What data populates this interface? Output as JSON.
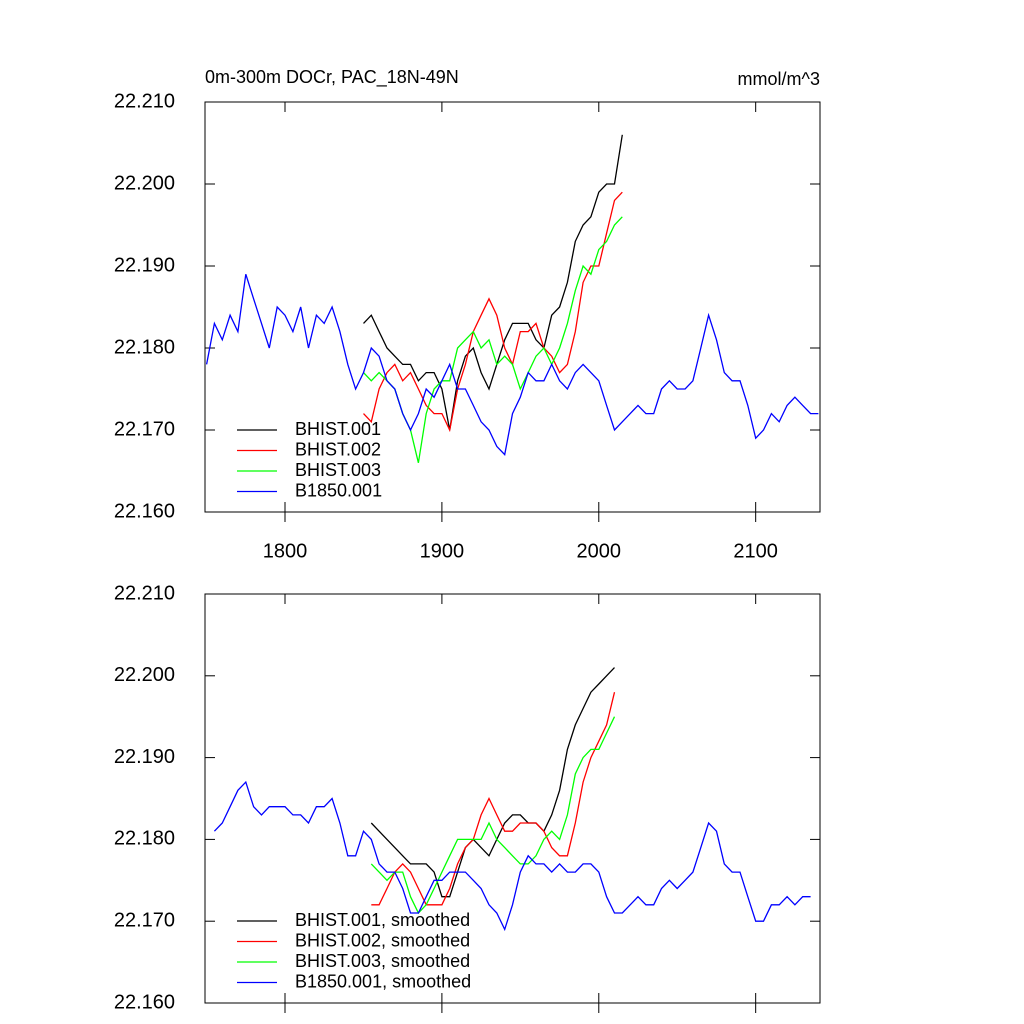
{
  "chart_data": [
    {
      "type": "line",
      "title": "0m-300m DOCr, PAC_18N-49N",
      "units": "mmol/m^3",
      "xlim": [
        1749,
        2141
      ],
      "xticks": [
        1800,
        1900,
        2000,
        2100
      ],
      "show_xtick_labels": true,
      "ylim": [
        22.16,
        22.21
      ],
      "yticks": [
        {
          "value": 22.16,
          "label": "22.160"
        },
        {
          "value": 22.17,
          "label": "22.170"
        },
        {
          "value": 22.18,
          "label": "22.180"
        },
        {
          "value": 22.19,
          "label": "22.190"
        },
        {
          "value": 22.2,
          "label": "22.200"
        },
        {
          "value": 22.21,
          "label": "22.210"
        }
      ],
      "legend": "lower left",
      "series": [
        {
          "name": "BHIST.001",
          "color": "#000000",
          "x": [
            1850,
            1855,
            1860,
            1865,
            1870,
            1875,
            1880,
            1885,
            1890,
            1895,
            1900,
            1905,
            1910,
            1915,
            1920,
            1925,
            1930,
            1935,
            1940,
            1945,
            1950,
            1955,
            1960,
            1965,
            1970,
            1975,
            1980,
            1985,
            1990,
            1995,
            2000,
            2005,
            2010,
            2015
          ],
          "values": [
            22.183,
            22.184,
            22.182,
            22.18,
            22.179,
            22.178,
            22.178,
            22.176,
            22.177,
            22.177,
            22.175,
            22.17,
            22.176,
            22.179,
            22.18,
            22.177,
            22.175,
            22.178,
            22.181,
            22.183,
            22.183,
            22.183,
            22.181,
            22.18,
            22.184,
            22.185,
            22.188,
            22.193,
            22.195,
            22.196,
            22.199,
            22.2,
            22.2,
            22.206
          ]
        },
        {
          "name": "BHIST.002",
          "color": "#ff0000",
          "x": [
            1850,
            1855,
            1860,
            1865,
            1870,
            1875,
            1880,
            1885,
            1890,
            1895,
            1900,
            1905,
            1910,
            1915,
            1920,
            1925,
            1930,
            1935,
            1940,
            1945,
            1950,
            1955,
            1960,
            1965,
            1970,
            1975,
            1980,
            1985,
            1990,
            1995,
            2000,
            2005,
            2010,
            2015
          ],
          "values": [
            22.172,
            22.171,
            22.175,
            22.177,
            22.178,
            22.176,
            22.177,
            22.175,
            22.173,
            22.172,
            22.172,
            22.17,
            22.175,
            22.178,
            22.182,
            22.184,
            22.186,
            22.184,
            22.18,
            22.178,
            22.182,
            22.182,
            22.183,
            22.18,
            22.179,
            22.177,
            22.178,
            22.182,
            22.188,
            22.19,
            22.19,
            22.194,
            22.198,
            22.199
          ]
        },
        {
          "name": "BHIST.003",
          "color": "#00ff00",
          "x": [
            1850,
            1855,
            1860,
            1865,
            1870,
            1875,
            1880,
            1885,
            1890,
            1895,
            1900,
            1905,
            1910,
            1915,
            1920,
            1925,
            1930,
            1935,
            1940,
            1945,
            1950,
            1955,
            1960,
            1965,
            1970,
            1975,
            1980,
            1985,
            1990,
            1995,
            2000,
            2005,
            2010,
            2015
          ],
          "values": [
            22.177,
            22.176,
            22.177,
            22.176,
            22.175,
            22.172,
            22.17,
            22.166,
            22.172,
            22.175,
            22.176,
            22.176,
            22.18,
            22.181,
            22.182,
            22.18,
            22.181,
            22.178,
            22.179,
            22.178,
            22.175,
            22.177,
            22.179,
            22.18,
            22.178,
            22.18,
            22.183,
            22.187,
            22.19,
            22.189,
            22.192,
            22.193,
            22.195,
            22.196
          ]
        },
        {
          "name": "B1850.001",
          "color": "#0000ff",
          "x": [
            1750,
            1755,
            1760,
            1765,
            1770,
            1775,
            1780,
            1785,
            1790,
            1795,
            1800,
            1805,
            1810,
            1815,
            1820,
            1825,
            1830,
            1835,
            1840,
            1845,
            1850,
            1855,
            1860,
            1865,
            1870,
            1875,
            1880,
            1885,
            1890,
            1895,
            1900,
            1905,
            1910,
            1915,
            1920,
            1925,
            1930,
            1935,
            1940,
            1945,
            1950,
            1955,
            1960,
            1965,
            1970,
            1975,
            1980,
            1985,
            1990,
            1995,
            2000,
            2005,
            2010,
            2015,
            2020,
            2025,
            2030,
            2035,
            2040,
            2045,
            2050,
            2055,
            2060,
            2065,
            2070,
            2075,
            2080,
            2085,
            2090,
            2095,
            2100,
            2105,
            2110,
            2115,
            2120,
            2125,
            2130,
            2135,
            2140
          ],
          "values": [
            22.178,
            22.183,
            22.181,
            22.184,
            22.182,
            22.189,
            22.186,
            22.183,
            22.18,
            22.185,
            22.184,
            22.182,
            22.185,
            22.18,
            22.184,
            22.183,
            22.185,
            22.182,
            22.178,
            22.175,
            22.177,
            22.18,
            22.179,
            22.176,
            22.175,
            22.172,
            22.17,
            22.172,
            22.175,
            22.174,
            22.176,
            22.178,
            22.175,
            22.175,
            22.173,
            22.171,
            22.17,
            22.168,
            22.167,
            22.172,
            22.174,
            22.177,
            22.176,
            22.176,
            22.178,
            22.176,
            22.175,
            22.177,
            22.178,
            22.177,
            22.176,
            22.173,
            22.17,
            22.171,
            22.172,
            22.173,
            22.172,
            22.172,
            22.175,
            22.176,
            22.175,
            22.175,
            22.176,
            22.18,
            22.184,
            22.181,
            22.177,
            22.176,
            22.176,
            22.173,
            22.169,
            22.17,
            22.172,
            22.171,
            22.173,
            22.174,
            22.173,
            22.172,
            22.172
          ]
        }
      ]
    },
    {
      "type": "line",
      "xlim": [
        1749,
        2141
      ],
      "xticks": [
        1800,
        1900,
        2000,
        2100
      ],
      "show_xtick_labels": false,
      "ylim": [
        22.16,
        22.21
      ],
      "yticks": [
        {
          "value": 22.16,
          "label": "22.160"
        },
        {
          "value": 22.17,
          "label": "22.170"
        },
        {
          "value": 22.18,
          "label": "22.180"
        },
        {
          "value": 22.19,
          "label": "22.190"
        },
        {
          "value": 22.2,
          "label": "22.200"
        },
        {
          "value": 22.21,
          "label": "22.210"
        }
      ],
      "legend": "lower left",
      "series": [
        {
          "name": "BHIST.001, smoothed",
          "color": "#000000",
          "x": [
            1855,
            1860,
            1865,
            1870,
            1875,
            1880,
            1885,
            1890,
            1895,
            1900,
            1905,
            1910,
            1915,
            1920,
            1925,
            1930,
            1935,
            1940,
            1945,
            1950,
            1955,
            1960,
            1965,
            1970,
            1975,
            1980,
            1985,
            1990,
            1995,
            2000,
            2005,
            2010
          ],
          "values": [
            22.182,
            22.181,
            22.18,
            22.179,
            22.178,
            22.177,
            22.177,
            22.177,
            22.176,
            22.173,
            22.173,
            22.176,
            22.179,
            22.18,
            22.179,
            22.178,
            22.18,
            22.182,
            22.183,
            22.183,
            22.182,
            22.182,
            22.181,
            22.183,
            22.186,
            22.191,
            22.194,
            22.196,
            22.198,
            22.199,
            22.2,
            22.201
          ]
        },
        {
          "name": "BHIST.002, smoothed",
          "color": "#ff0000",
          "x": [
            1855,
            1860,
            1865,
            1870,
            1875,
            1880,
            1885,
            1890,
            1895,
            1900,
            1905,
            1910,
            1915,
            1920,
            1925,
            1930,
            1935,
            1940,
            1945,
            1950,
            1955,
            1960,
            1965,
            1970,
            1975,
            1980,
            1985,
            1990,
            1995,
            2000,
            2005,
            2010
          ],
          "values": [
            22.172,
            22.172,
            22.174,
            22.176,
            22.177,
            22.176,
            22.174,
            22.172,
            22.172,
            22.172,
            22.174,
            22.177,
            22.179,
            22.18,
            22.183,
            22.185,
            22.183,
            22.181,
            22.181,
            22.182,
            22.182,
            22.182,
            22.181,
            22.179,
            22.178,
            22.178,
            22.182,
            22.187,
            22.19,
            22.192,
            22.194,
            22.198
          ]
        },
        {
          "name": "BHIST.003, smoothed",
          "color": "#00ff00",
          "x": [
            1855,
            1860,
            1865,
            1870,
            1875,
            1880,
            1885,
            1890,
            1895,
            1900,
            1905,
            1910,
            1915,
            1920,
            1925,
            1930,
            1935,
            1940,
            1945,
            1950,
            1955,
            1960,
            1965,
            1970,
            1975,
            1980,
            1985,
            1990,
            1995,
            2000,
            2005,
            2010
          ],
          "values": [
            22.177,
            22.176,
            22.175,
            22.176,
            22.176,
            22.173,
            22.171,
            22.172,
            22.174,
            22.176,
            22.178,
            22.18,
            22.18,
            22.18,
            22.18,
            22.182,
            22.18,
            22.179,
            22.178,
            22.177,
            22.177,
            22.178,
            22.18,
            22.181,
            22.18,
            22.183,
            22.188,
            22.19,
            22.191,
            22.191,
            22.193,
            22.195
          ]
        },
        {
          "name": "B1850.001, smoothed",
          "color": "#0000ff",
          "x": [
            1755,
            1760,
            1765,
            1770,
            1775,
            1780,
            1785,
            1790,
            1795,
            1800,
            1805,
            1810,
            1815,
            1820,
            1825,
            1830,
            1835,
            1840,
            1845,
            1850,
            1855,
            1860,
            1865,
            1870,
            1875,
            1880,
            1885,
            1890,
            1895,
            1900,
            1905,
            1910,
            1915,
            1920,
            1925,
            1930,
            1935,
            1940,
            1945,
            1950,
            1955,
            1960,
            1965,
            1970,
            1975,
            1980,
            1985,
            1990,
            1995,
            2000,
            2005,
            2010,
            2015,
            2020,
            2025,
            2030,
            2035,
            2040,
            2045,
            2050,
            2055,
            2060,
            2065,
            2070,
            2075,
            2080,
            2085,
            2090,
            2095,
            2100,
            2105,
            2110,
            2115,
            2120,
            2125,
            2130,
            2135
          ],
          "values": [
            22.181,
            22.182,
            22.184,
            22.186,
            22.187,
            22.184,
            22.183,
            22.184,
            22.184,
            22.184,
            22.183,
            22.183,
            22.182,
            22.184,
            22.184,
            22.185,
            22.182,
            22.178,
            22.178,
            22.181,
            22.18,
            22.177,
            22.176,
            22.176,
            22.174,
            22.171,
            22.171,
            22.173,
            22.175,
            22.175,
            22.176,
            22.176,
            22.176,
            22.175,
            22.174,
            22.172,
            22.171,
            22.169,
            22.172,
            22.176,
            22.178,
            22.177,
            22.177,
            22.176,
            22.177,
            22.176,
            22.176,
            22.177,
            22.177,
            22.176,
            22.173,
            22.171,
            22.171,
            22.172,
            22.173,
            22.172,
            22.172,
            22.174,
            22.175,
            22.174,
            22.175,
            22.176,
            22.179,
            22.182,
            22.181,
            22.177,
            22.176,
            22.176,
            22.173,
            22.17,
            22.17,
            22.172,
            22.172,
            22.173,
            22.172,
            22.173,
            22.173
          ]
        }
      ]
    }
  ]
}
